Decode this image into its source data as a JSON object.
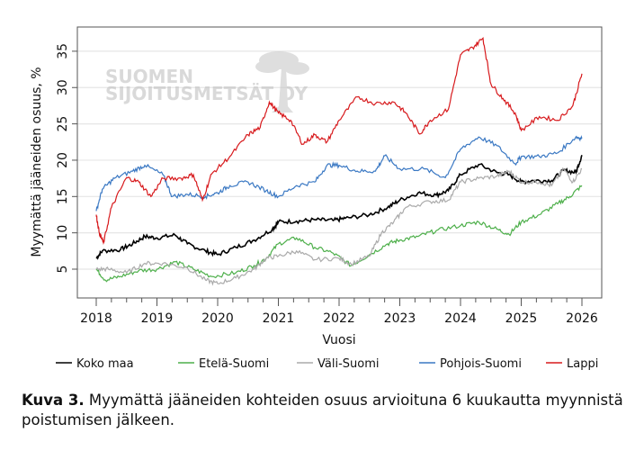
{
  "chart_data": {
    "type": "line",
    "title": "",
    "xlabel": "Vuosi",
    "ylabel": "Myymättä jääneiden osuus, %",
    "xlim": [
      2017.7,
      2026.35
    ],
    "ylim": [
      1,
      38
    ],
    "xticks": [
      2018,
      2019,
      2020,
      2021,
      2022,
      2023,
      2024,
      2025,
      2026
    ],
    "yticks": [
      5,
      10,
      15,
      20,
      25,
      30,
      35
    ],
    "grid": "horizontal",
    "legend_position": "bottom",
    "series": [
      {
        "name": "Koko maa",
        "color": "#000000",
        "x": [
          2018.0,
          2018.1,
          2018.4,
          2018.6,
          2018.8,
          2019.0,
          2019.3,
          2019.5,
          2019.8,
          2020.0,
          2020.3,
          2020.6,
          2020.9,
          2021.0,
          2021.3,
          2021.6,
          2021.9,
          2022.1,
          2022.5,
          2022.8,
          2023.0,
          2023.3,
          2023.6,
          2023.8,
          2024.0,
          2024.3,
          2024.6,
          2024.8,
          2025.0,
          2025.2,
          2025.5,
          2025.7,
          2025.9,
          2026.0
        ],
        "y": [
          6.5,
          7.5,
          7.7,
          8.5,
          9.5,
          9.3,
          9.7,
          8.5,
          7.5,
          7.0,
          8.0,
          9.0,
          10.5,
          11.5,
          11.6,
          11.8,
          11.7,
          12.0,
          12.5,
          13.5,
          14.5,
          15.5,
          15.2,
          15.8,
          18.0,
          19.4,
          18.3,
          18.0,
          17.0,
          17.2,
          17.2,
          18.6,
          18.3,
          20.7
        ]
      },
      {
        "name": "Etelä-Suomi",
        "color": "#4daf4a",
        "x": [
          2018.0,
          2018.15,
          2018.4,
          2018.7,
          2019.0,
          2019.3,
          2019.6,
          2019.9,
          2020.3,
          2020.6,
          2020.8,
          2021.0,
          2021.3,
          2021.6,
          2021.9,
          2022.2,
          2022.5,
          2022.8,
          2023.0,
          2023.3,
          2023.6,
          2024.0,
          2024.3,
          2024.6,
          2024.8,
          2025.0,
          2025.3,
          2025.6,
          2025.8,
          2026.0
        ],
        "y": [
          5.0,
          3.5,
          4.0,
          4.8,
          5.0,
          6.0,
          5.0,
          4.0,
          4.5,
          5.5,
          6.5,
          8.5,
          9.3,
          8.0,
          7.2,
          5.5,
          7.0,
          8.5,
          9.0,
          9.5,
          10.3,
          11.0,
          11.5,
          10.5,
          9.8,
          11.5,
          12.5,
          14.0,
          15.0,
          16.5
        ]
      },
      {
        "name": "Väli-Suomi",
        "color": "#aaaaaa",
        "x": [
          2018.0,
          2018.2,
          2018.5,
          2018.8,
          2019.1,
          2019.5,
          2019.8,
          2020.0,
          2020.3,
          2020.6,
          2020.8,
          2021.0,
          2021.3,
          2021.6,
          2022.0,
          2022.2,
          2022.5,
          2022.7,
          2022.9,
          2023.1,
          2023.5,
          2023.8,
          2024.0,
          2024.3,
          2024.6,
          2024.8,
          2025.0,
          2025.3,
          2025.5,
          2025.7,
          2025.85,
          2026.0
        ],
        "y": [
          5.0,
          5.0,
          4.5,
          5.8,
          5.8,
          5.2,
          3.5,
          3.0,
          3.8,
          5.0,
          6.5,
          6.8,
          7.5,
          6.3,
          6.5,
          5.7,
          6.8,
          10.0,
          11.5,
          13.5,
          14.3,
          14.5,
          17.0,
          17.5,
          17.8,
          18.5,
          17.0,
          17.0,
          16.5,
          18.8,
          17.0,
          18.8
        ]
      },
      {
        "name": "Pohjois-Suomi",
        "color": "#3a78c3",
        "x": [
          2018.0,
          2018.1,
          2018.3,
          2018.6,
          2018.8,
          2019.1,
          2019.25,
          2019.5,
          2019.8,
          2020.0,
          2020.2,
          2020.5,
          2020.8,
          2021.0,
          2021.3,
          2021.6,
          2021.8,
          2022.0,
          2022.3,
          2022.6,
          2022.75,
          2023.0,
          2023.4,
          2023.75,
          2024.0,
          2024.3,
          2024.6,
          2024.9,
          2025.0,
          2025.3,
          2025.6,
          2025.9,
          2026.0
        ],
        "y": [
          13.0,
          16.0,
          17.5,
          18.5,
          19.3,
          18.0,
          15.0,
          15.3,
          15.0,
          15.5,
          16.5,
          17.0,
          15.8,
          15.0,
          16.5,
          17.0,
          19.3,
          19.3,
          18.5,
          18.5,
          20.6,
          18.8,
          18.8,
          17.6,
          21.5,
          23.2,
          22.0,
          19.5,
          20.5,
          20.5,
          21.0,
          23.2,
          23.0
        ]
      },
      {
        "name": "Lappi",
        "color": "#d7191c",
        "x": [
          2018.0,
          2018.05,
          2018.12,
          2018.25,
          2018.5,
          2018.7,
          2018.9,
          2019.1,
          2019.4,
          2019.6,
          2019.75,
          2019.9,
          2020.2,
          2020.5,
          2020.7,
          2020.85,
          2021.0,
          2021.2,
          2021.4,
          2021.6,
          2021.8,
          2022.0,
          2022.3,
          2022.6,
          2022.9,
          2023.1,
          2023.33,
          2023.5,
          2023.8,
          2024.0,
          2024.2,
          2024.37,
          2024.5,
          2024.7,
          2024.9,
          2025.0,
          2025.3,
          2025.6,
          2025.85,
          2026.0
        ],
        "y": [
          12.5,
          10.0,
          8.6,
          13.5,
          17.6,
          17.0,
          15.0,
          17.5,
          17.5,
          18.0,
          14.5,
          18.1,
          20.5,
          23.5,
          24.5,
          28.0,
          26.5,
          25.5,
          22.2,
          23.5,
          22.5,
          25.5,
          28.7,
          27.8,
          28.0,
          26.5,
          23.6,
          25.5,
          27.0,
          34.5,
          35.5,
          36.8,
          30.5,
          28.5,
          26.5,
          24.1,
          26.0,
          25.5,
          27.5,
          31.9
        ]
      }
    ]
  },
  "watermark": {
    "line1": "SUOMEN",
    "line2": "SIJOITUSMETSÄT OY"
  },
  "caption": {
    "label": "Kuva 3.",
    "text": " Myymättä jääneiden kohteiden osuus arvioituna 6 kuukautta myynnistä poistumisen jälkeen."
  }
}
